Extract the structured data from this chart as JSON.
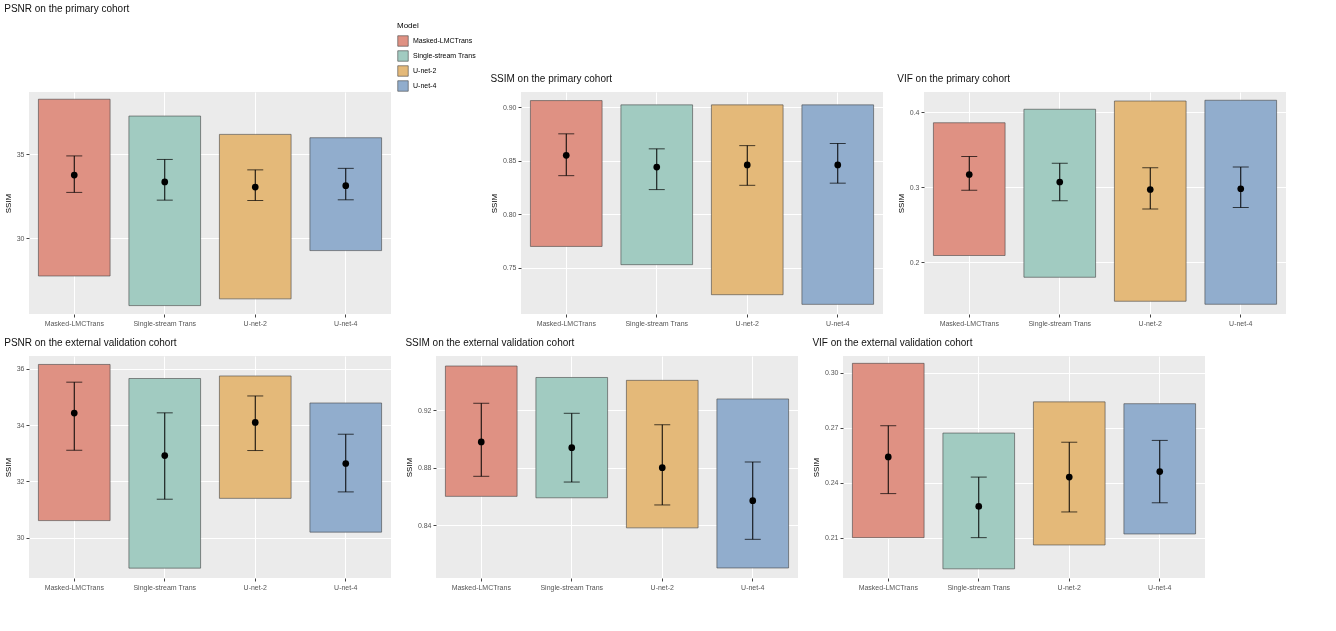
{
  "chart_data": [
    {
      "type": "bar",
      "title": "PSNR on the primary cohort",
      "ylabel": "SSIM",
      "categories": [
        "Masked-LMCTrans",
        "Single-stream Trans",
        "U-net-2",
        "U-net-4"
      ],
      "ylim": [
        25.5,
        38.7
      ],
      "yticks": [
        30,
        35
      ],
      "grid": true,
      "legend": "top right",
      "legend_title": "Model",
      "series": [
        {
          "type": "bar",
          "name": "Masked-LMCTrans",
          "color": "#df9183",
          "base": [
            27.76,
            null,
            null,
            null
          ],
          "values": [
            10.51,
            null,
            null,
            null
          ]
        },
        {
          "type": "bar",
          "name": "Single-stream Trans",
          "color": "#a1cbc1",
          "base": [
            null,
            26.0,
            null,
            null
          ],
          "values": [
            null,
            11.27,
            null,
            null
          ]
        },
        {
          "type": "bar",
          "name": "U-net-2",
          "color": "#e4b979",
          "base": [
            null,
            null,
            26.4,
            null
          ],
          "values": [
            null,
            null,
            9.78,
            null
          ]
        },
        {
          "type": "bar",
          "name": "U-net-4",
          "color": "#91adcd",
          "base": [
            null,
            null,
            null,
            29.27
          ],
          "values": [
            null,
            null,
            null,
            6.71
          ]
        },
        {
          "type": "scatter",
          "color": "#000000",
          "marker": "circle",
          "x": [
            "Masked-LMCTrans",
            "Single-stream Trans",
            "U-net-2",
            "U-net-4"
          ],
          "values": [
            33.76,
            33.35,
            33.05,
            33.13
          ],
          "errors": [
            [
              32.73,
              34.9
            ],
            [
              32.27,
              34.69
            ],
            [
              32.25,
              34.07
            ],
            [
              32.29,
              34.16
            ]
          ]
        }
      ]
    },
    {
      "type": "bar",
      "title": "SSIM on the primary cohort",
      "ylabel": "SSIM",
      "categories": [
        "Masked-LMCTrans",
        "Single-stream Trans",
        "U-net-2",
        "U-net-4"
      ],
      "ylim": [
        0.707,
        0.914
      ],
      "yticks": [
        {
          "value": 0.75,
          "label": "0.75"
        },
        {
          "value": 0.8,
          "label": "0.80"
        },
        {
          "value": 0.85,
          "label": "0.85"
        },
        {
          "value": 0.9,
          "label": "0.90"
        }
      ],
      "grid": true,
      "series": [
        {
          "type": "bar",
          "color": "#df9183",
          "base": [
            0.77,
            null,
            null,
            null
          ],
          "values": [
            0.136,
            null,
            null,
            null
          ]
        },
        {
          "type": "bar",
          "color": "#a1cbc1",
          "base": [
            null,
            0.753,
            null,
            null
          ],
          "values": [
            null,
            0.149,
            null,
            null
          ]
        },
        {
          "type": "bar",
          "color": "#e4b979",
          "base": [
            null,
            null,
            0.725,
            null
          ],
          "values": [
            null,
            null,
            0.177,
            null
          ]
        },
        {
          "type": "bar",
          "color": "#91adcd",
          "base": [
            null,
            null,
            null,
            0.716
          ],
          "values": [
            null,
            null,
            null,
            0.186
          ]
        },
        {
          "type": "scatter",
          "color": "#000000",
          "marker": "circle",
          "x": [
            "Masked-LMCTrans",
            "Single-stream Trans",
            "U-net-2",
            "U-net-4"
          ],
          "values": [
            0.855,
            0.844,
            0.846,
            0.846
          ],
          "errors": [
            [
              0.836,
              0.875
            ],
            [
              0.823,
              0.861
            ],
            [
              0.827,
              0.864
            ],
            [
              0.829,
              0.866
            ]
          ]
        }
      ]
    },
    {
      "type": "bar",
      "title": "VIF on the primary cohort",
      "ylabel": "SSIM",
      "categories": [
        "Masked-LMCTrans",
        "Single-stream Trans",
        "U-net-2",
        "U-net-4"
      ],
      "ylim": [
        0.131,
        0.427
      ],
      "yticks": [
        0.2,
        0.3,
        0.4
      ],
      "grid": true,
      "series": [
        {
          "type": "bar",
          "color": "#df9183",
          "base": [
            0.209,
            null,
            null,
            null
          ],
          "values": [
            0.177,
            null,
            null,
            null
          ]
        },
        {
          "type": "bar",
          "color": "#a1cbc1",
          "base": [
            null,
            0.18,
            null,
            null
          ],
          "values": [
            null,
            0.224,
            null,
            null
          ]
        },
        {
          "type": "bar",
          "color": "#e4b979",
          "base": [
            null,
            null,
            0.148,
            null
          ],
          "values": [
            null,
            null,
            0.267,
            null
          ]
        },
        {
          "type": "bar",
          "color": "#91adcd",
          "base": [
            null,
            null,
            null,
            0.144
          ],
          "values": [
            null,
            null,
            null,
            0.272
          ]
        },
        {
          "type": "scatter",
          "color": "#000000",
          "marker": "circle",
          "x": [
            "Masked-LMCTrans",
            "Single-stream Trans",
            "U-net-2",
            "U-net-4"
          ],
          "values": [
            0.317,
            0.307,
            0.297,
            0.298
          ],
          "errors": [
            [
              0.296,
              0.341
            ],
            [
              0.282,
              0.332
            ],
            [
              0.271,
              0.326
            ],
            [
              0.273,
              0.327
            ]
          ]
        }
      ]
    },
    {
      "type": "bar",
      "title": "PSNR on the external validation cohort",
      "ylabel": "SSIM",
      "categories": [
        "Masked-LMCTrans",
        "Single-stream Trans",
        "U-net-2",
        "U-net-4"
      ],
      "ylim": [
        28.57,
        36.46
      ],
      "yticks": [
        30,
        32,
        34,
        36
      ],
      "grid": true,
      "series": [
        {
          "type": "bar",
          "color": "#df9183",
          "base": [
            30.61,
            null,
            null,
            null
          ],
          "values": [
            5.55,
            null,
            null,
            null
          ]
        },
        {
          "type": "bar",
          "color": "#a1cbc1",
          "base": [
            null,
            28.92,
            null,
            null
          ],
          "values": [
            null,
            6.74,
            null,
            null
          ]
        },
        {
          "type": "bar",
          "color": "#e4b979",
          "base": [
            null,
            null,
            31.4,
            null
          ],
          "values": [
            null,
            null,
            4.35,
            null
          ]
        },
        {
          "type": "bar",
          "color": "#91adcd",
          "base": [
            null,
            null,
            null,
            30.2
          ],
          "values": [
            null,
            null,
            null,
            4.59
          ]
        },
        {
          "type": "scatter",
          "color": "#000000",
          "marker": "circle",
          "x": [
            "Masked-LMCTrans",
            "Single-stream Trans",
            "U-net-2",
            "U-net-4"
          ],
          "values": [
            34.43,
            32.92,
            34.1,
            32.64
          ],
          "errors": [
            [
              33.11,
              35.53
            ],
            [
              31.37,
              34.44
            ],
            [
              33.1,
              35.04
            ],
            [
              31.63,
              33.68
            ]
          ]
        }
      ]
    },
    {
      "type": "bar",
      "title": "SSIM on the external validation cohort",
      "ylabel": "SSIM",
      "categories": [
        "Masked-LMCTrans",
        "Single-stream Trans",
        "U-net-2",
        "U-net-4"
      ],
      "ylim": [
        0.803,
        0.958
      ],
      "yticks": [
        0.84,
        0.88,
        0.92
      ],
      "grid": true,
      "series": [
        {
          "type": "bar",
          "color": "#df9183",
          "base": [
            0.86,
            null,
            null,
            null
          ],
          "values": [
            0.091,
            null,
            null,
            null
          ]
        },
        {
          "type": "bar",
          "color": "#a1cbc1",
          "base": [
            null,
            0.859,
            null,
            null
          ],
          "values": [
            null,
            0.084,
            null,
            null
          ]
        },
        {
          "type": "bar",
          "color": "#e4b979",
          "base": [
            null,
            null,
            0.838,
            null
          ],
          "values": [
            null,
            null,
            0.103,
            null
          ]
        },
        {
          "type": "bar",
          "color": "#91adcd",
          "base": [
            null,
            null,
            null,
            0.81
          ],
          "values": [
            null,
            null,
            null,
            0.118
          ]
        },
        {
          "type": "scatter",
          "color": "#000000",
          "marker": "circle",
          "x": [
            "Masked-LMCTrans",
            "Single-stream Trans",
            "U-net-2",
            "U-net-4"
          ],
          "values": [
            0.898,
            0.894,
            0.88,
            0.857
          ],
          "errors": [
            [
              0.874,
              0.925
            ],
            [
              0.87,
              0.918
            ],
            [
              0.854,
              0.91
            ],
            [
              0.83,
              0.884
            ]
          ]
        }
      ]
    },
    {
      "type": "bar",
      "title": "VIF on the external validation cohort",
      "ylabel": "SSIM",
      "categories": [
        "Masked-LMCTrans",
        "Single-stream Trans",
        "U-net-2",
        "U-net-4"
      ],
      "ylim": [
        0.188,
        0.309
      ],
      "yticks": [
        0.21,
        0.24,
        0.27,
        {
          "value": 0.3,
          "label": "0.30"
        }
      ],
      "grid": true,
      "series": [
        {
          "type": "bar",
          "color": "#df9183",
          "base": [
            0.21,
            null,
            null,
            null
          ],
          "values": [
            0.095,
            null,
            null,
            null
          ]
        },
        {
          "type": "bar",
          "color": "#a1cbc1",
          "base": [
            null,
            0.193,
            null,
            null
          ],
          "values": [
            null,
            0.074,
            null,
            null
          ]
        },
        {
          "type": "bar",
          "color": "#e4b979",
          "base": [
            null,
            null,
            0.206,
            null
          ],
          "values": [
            null,
            null,
            0.078,
            null
          ]
        },
        {
          "type": "bar",
          "color": "#91adcd",
          "base": [
            null,
            null,
            null,
            0.212
          ],
          "values": [
            null,
            null,
            null,
            0.071
          ]
        },
        {
          "type": "scatter",
          "color": "#000000",
          "marker": "circle",
          "x": [
            "Masked-LMCTrans",
            "Single-stream Trans",
            "U-net-2",
            "U-net-4"
          ],
          "values": [
            0.254,
            0.227,
            0.243,
            0.246
          ],
          "errors": [
            [
              0.234,
              0.271
            ],
            [
              0.21,
              0.243
            ],
            [
              0.224,
              0.262
            ],
            [
              0.229,
              0.263
            ]
          ]
        }
      ]
    }
  ]
}
